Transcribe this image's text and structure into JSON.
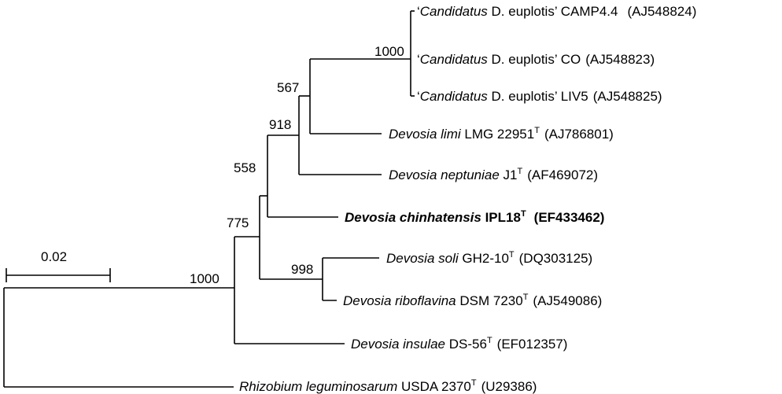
{
  "scale_bar": {
    "label": "0.02"
  },
  "taxa": [
    {
      "genus": "‘Candidatus",
      "rest": " D. euplotis’ CAMP4.4",
      "type_strain": false,
      "accession": "(AJ548824)",
      "highlight": false,
      "genus_italic_only_first": true
    },
    {
      "genus": "‘Candidatus",
      "rest": " D. euplotis’ CO",
      "type_strain": false,
      "accession": "(AJ548823)",
      "highlight": false,
      "genus_italic_only_first": true
    },
    {
      "genus": "‘Candidatus",
      "rest": " D. euplotis’ LIV5",
      "type_strain": false,
      "accession": "(AJ548825)",
      "highlight": false,
      "genus_italic_only_first": true
    },
    {
      "genus": "Devosia limi",
      "rest": " LMG 22951",
      "type_strain": true,
      "accession": "(AJ786801)",
      "highlight": false
    },
    {
      "genus": "Devosia neptuniae",
      "rest": " J1",
      "type_strain": true,
      "accession": "(AF469072)",
      "highlight": false
    },
    {
      "genus": "Devosia chinhatensis",
      "rest": " IPL18",
      "type_strain": true,
      "accession": "(EF433462)",
      "highlight": true
    },
    {
      "genus": "Devosia soli",
      "rest": " GH2-10",
      "type_strain": true,
      "accession": "(DQ303125)",
      "highlight": false
    },
    {
      "genus": "Devosia riboflavina",
      "rest": " DSM 7230",
      "type_strain": true,
      "accession": "(AJ549086)",
      "highlight": false
    },
    {
      "genus": "Devosia insulae",
      "rest": " DS-56",
      "type_strain": true,
      "accession": "(EF012357)",
      "highlight": false
    },
    {
      "genus": "Rhizobium leguminosarum",
      "rest": " USDA 2370",
      "type_strain": true,
      "accession": "(U29386)",
      "highlight": false
    }
  ],
  "type_strain_mark": "T",
  "bootstrap": {
    "candidatus_clade": "1000",
    "limi_candidatus": "567",
    "neptuniae_group": "918",
    "chinhatensis_group": "558",
    "devosia_core": "775",
    "soli_riboflavina": "998",
    "devosia_all": "1000"
  }
}
